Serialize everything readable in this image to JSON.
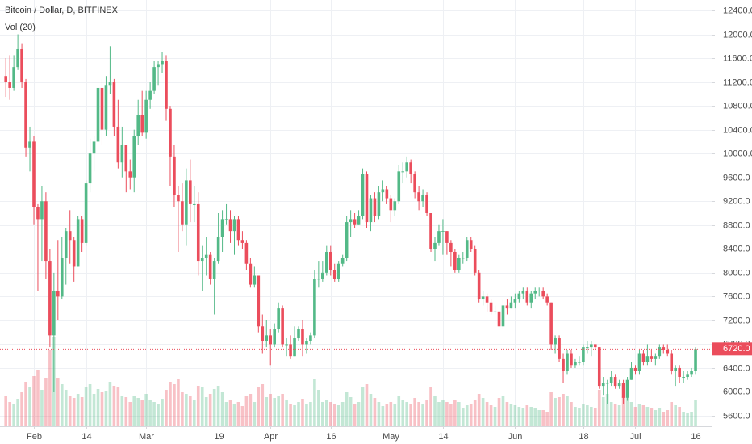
{
  "chart_data": {
    "type": "candlestick",
    "title": "Bitcoin / Dollar, D, BITFINEX",
    "volume_label": "Vol (20)",
    "categories": [
      null,
      null,
      null,
      null,
      null,
      null,
      null,
      "Feb",
      null,
      null,
      null,
      null,
      null,
      null,
      null,
      null,
      null,
      null,
      null,
      null,
      "14",
      null,
      null,
      null,
      null,
      null,
      null,
      null,
      null,
      null,
      null,
      null,
      null,
      null,
      null,
      "Mar",
      null,
      null,
      null,
      null,
      null,
      null,
      null,
      null,
      null,
      null,
      null,
      null,
      null,
      null,
      null,
      null,
      null,
      "19",
      null,
      null,
      null,
      null,
      null,
      null,
      null,
      null,
      null,
      null,
      null,
      null,
      "Apr",
      null,
      null,
      null,
      null,
      null,
      null,
      null,
      null,
      null,
      null,
      null,
      null,
      null,
      null,
      "16",
      null,
      null,
      null,
      null,
      null,
      null,
      null,
      null,
      null,
      null,
      null,
      null,
      null,
      null,
      "May",
      null,
      null,
      null,
      null,
      null,
      null,
      null,
      null,
      null,
      null,
      null,
      null,
      "14",
      null,
      null,
      null,
      null,
      null,
      null,
      null,
      null,
      null,
      null,
      null,
      null,
      null,
      null,
      null,
      null,
      null,
      "Jun",
      null,
      null,
      null,
      null,
      null,
      null,
      null,
      null,
      null,
      null,
      null,
      null,
      null,
      null,
      null,
      null,
      "18",
      null,
      null,
      null,
      null,
      null,
      null,
      null,
      null,
      null,
      null,
      null,
      null,
      "Jul",
      null,
      null,
      null,
      null,
      null,
      null,
      null,
      null,
      null,
      null,
      null,
      null,
      null,
      null,
      "16"
    ],
    "open": [
      11300,
      11200,
      11100,
      11450,
      11750,
      11200,
      10100,
      10200,
      9100,
      8900,
      9200,
      8200,
      6950,
      7700,
      7600,
      8250,
      8700,
      8550,
      8100,
      8900,
      8500,
      9500,
      10000,
      10200,
      11100,
      10400,
      11150,
      11200,
      10450,
      9850,
      10150,
      9700,
      9600,
      10300,
      10650,
      10350,
      10900,
      11050,
      11450,
      11500,
      11550,
      10750,
      9950,
      9300,
      9200,
      8800,
      9550,
      9150,
      9150,
      8200,
      8250,
      8300,
      7900,
      8200,
      8600,
      8900,
      8900,
      8700,
      8900,
      8550,
      8500,
      8150,
      7800,
      7950,
      7100,
      6850,
      6950,
      6800,
      7050,
      7400,
      6800,
      6800,
      6600,
      6900,
      7050,
      6800,
      6850,
      6950,
      7900,
      7900,
      8000,
      8350,
      8050,
      7900,
      8150,
      8250,
      8850,
      8900,
      8800,
      8950,
      9650,
      8850,
      9250,
      8950,
      9350,
      9400,
      9250,
      9050,
      9200,
      9700,
      9700,
      9850,
      9650,
      9350,
      9200,
      9300,
      9000,
      8400,
      8500,
      8700,
      8700,
      8500,
      8350,
      8050,
      8250,
      8250,
      8550,
      8400,
      8000,
      7550,
      7600,
      7500,
      7350,
      7350,
      7100,
      7450,
      7400,
      7500,
      7550,
      7650,
      7700,
      7500,
      7650,
      7700,
      7700,
      7600,
      7500,
      6800,
      6900,
      6550,
      6350,
      6650,
      6450,
      6500,
      6500,
      6750,
      6750,
      6800,
      6750,
      6100,
      6150,
      6150,
      6250,
      6100,
      6150,
      5900,
      6200,
      6400,
      6350,
      6650,
      6500,
      6600,
      6550,
      6600,
      6750,
      6700,
      6650,
      6350,
      6400,
      6250,
      6250,
      6300,
      6350
    ],
    "high": [
      11600,
      11650,
      11650,
      12000,
      11850,
      11250,
      10450,
      10300,
      9150,
      9450,
      9350,
      8400,
      8000,
      8550,
      8600,
      8750,
      9050,
      8600,
      8950,
      8950,
      9550,
      10250,
      10300,
      11100,
      11250,
      11300,
      11800,
      11250,
      10900,
      10450,
      10150,
      9900,
      10400,
      10900,
      11050,
      11050,
      11200,
      11550,
      11550,
      11700,
      11650,
      10800,
      10150,
      9450,
      9500,
      9750,
      9900,
      9450,
      9350,
      8450,
      8600,
      8350,
      8250,
      9000,
      9050,
      9150,
      9050,
      8950,
      8950,
      8700,
      8550,
      8250,
      8100,
      7950,
      7300,
      7200,
      7050,
      7150,
      7500,
      7450,
      6900,
      6950,
      7100,
      7100,
      7200,
      6900,
      7000,
      8050,
      8200,
      8200,
      8450,
      8450,
      8150,
      8200,
      8300,
      8950,
      9050,
      9000,
      9050,
      9750,
      9700,
      9300,
      9350,
      9450,
      9550,
      9450,
      9300,
      9250,
      9800,
      9850,
      9950,
      9900,
      9700,
      9450,
      9400,
      9350,
      9000,
      8600,
      8800,
      8900,
      8700,
      8550,
      8400,
      8300,
      8350,
      8600,
      8600,
      8450,
      8050,
      7700,
      7650,
      7550,
      7450,
      7400,
      7550,
      7550,
      7600,
      7650,
      7700,
      7750,
      7750,
      7700,
      7750,
      7750,
      7750,
      7650,
      7500,
      6950,
      6950,
      6650,
      6700,
      6700,
      6550,
      6600,
      6800,
      6850,
      6850,
      6800,
      6750,
      6250,
      6200,
      6350,
      6300,
      6200,
      6200,
      6250,
      6500,
      6450,
      6700,
      6700,
      6800,
      6700,
      6650,
      6800,
      6800,
      6800,
      6700,
      6450,
      6450,
      6350,
      6350,
      6400,
      6750
    ],
    "low": [
      10950,
      10900,
      11050,
      11400,
      11100,
      9950,
      9700,
      8800,
      7700,
      8200,
      7900,
      6750,
      6000,
      7200,
      7550,
      7800,
      8150,
      7850,
      8100,
      8350,
      8450,
      9350,
      9700,
      10100,
      10150,
      10300,
      11000,
      10300,
      9750,
      9600,
      9350,
      9400,
      9350,
      10150,
      10300,
      10250,
      10750,
      11000,
      11150,
      11350,
      10550,
      9450,
      9100,
      8350,
      8700,
      8450,
      8850,
      8850,
      7950,
      7700,
      7950,
      7800,
      7300,
      8150,
      8350,
      8800,
      8500,
      8300,
      8450,
      8400,
      8050,
      7750,
      7750,
      7000,
      6650,
      6750,
      6450,
      6750,
      7000,
      6750,
      6600,
      6550,
      6600,
      6850,
      6600,
      6650,
      6800,
      6900,
      7750,
      7850,
      7950,
      7950,
      7850,
      7850,
      8100,
      8200,
      8600,
      8750,
      8800,
      8900,
      8750,
      8700,
      8850,
      8900,
      9200,
      9150,
      8850,
      8950,
      9150,
      9500,
      9600,
      9500,
      9250,
      9050,
      9100,
      8950,
      8350,
      8200,
      8450,
      8300,
      8300,
      8100,
      8000,
      8000,
      8150,
      8200,
      8350,
      7950,
      7500,
      7450,
      7350,
      7300,
      7300,
      7050,
      7050,
      7300,
      7400,
      7400,
      7500,
      7550,
      7450,
      7400,
      7550,
      7600,
      7550,
      7450,
      6700,
      6650,
      6500,
      6150,
      6300,
      6400,
      6400,
      6450,
      6450,
      6650,
      6600,
      6700,
      6050,
      5950,
      5800,
      6100,
      6050,
      6050,
      5800,
      5850,
      6200,
      6300,
      6300,
      6450,
      6450,
      6500,
      6450,
      6550,
      6650,
      6600,
      6300,
      6100,
      6150,
      6150,
      6200,
      6250,
      6300
    ],
    "close": [
      11200,
      11100,
      11450,
      11750,
      11200,
      10100,
      10200,
      9100,
      8900,
      9200,
      8200,
      6950,
      7700,
      7600,
      8250,
      8700,
      8550,
      8100,
      8900,
      8500,
      9500,
      10000,
      10200,
      11100,
      10400,
      11150,
      11200,
      10450,
      9850,
      10150,
      9700,
      9600,
      10300,
      10650,
      10350,
      10900,
      11050,
      11450,
      11500,
      11550,
      10750,
      9950,
      9300,
      9200,
      8800,
      9550,
      9150,
      9150,
      8200,
      8250,
      8300,
      7900,
      8200,
      8600,
      8900,
      8900,
      8700,
      8900,
      8550,
      8500,
      8150,
      7800,
      7950,
      7100,
      6850,
      6950,
      6800,
      7050,
      7400,
      6800,
      6800,
      6600,
      6900,
      7050,
      6800,
      6850,
      6950,
      7900,
      7900,
      8000,
      8350,
      8050,
      7900,
      8150,
      8250,
      8850,
      8900,
      8800,
      8950,
      9650,
      8850,
      9250,
      8950,
      9350,
      9400,
      9250,
      9050,
      9200,
      9700,
      9700,
      9850,
      9650,
      9350,
      9200,
      9300,
      9000,
      8400,
      8500,
      8700,
      8700,
      8500,
      8350,
      8050,
      8250,
      8250,
      8550,
      8400,
      8000,
      7550,
      7600,
      7500,
      7350,
      7350,
      7100,
      7450,
      7400,
      7500,
      7550,
      7650,
      7700,
      7500,
      7650,
      7700,
      7700,
      7600,
      7500,
      6800,
      6900,
      6550,
      6350,
      6650,
      6450,
      6500,
      6500,
      6750,
      6750,
      6800,
      6750,
      6100,
      6150,
      6150,
      6250,
      6100,
      6150,
      5900,
      6200,
      6400,
      6350,
      6650,
      6500,
      6600,
      6550,
      6600,
      6750,
      6700,
      6650,
      6350,
      6400,
      6250,
      6250,
      6300,
      6350,
      6720
    ],
    "volume": [
      38000,
      30000,
      28000,
      34000,
      42000,
      55000,
      48000,
      62000,
      70000,
      45000,
      60000,
      95000,
      110000,
      60000,
      52000,
      45000,
      38000,
      35000,
      40000,
      36000,
      48000,
      52000,
      40000,
      46000,
      42000,
      44000,
      55000,
      50000,
      48000,
      38000,
      36000,
      30000,
      38000,
      35000,
      32000,
      40000,
      33000,
      30000,
      28000,
      34000,
      45000,
      55000,
      52000,
      58000,
      42000,
      40000,
      38000,
      32000,
      50000,
      48000,
      36000,
      40000,
      46000,
      50000,
      42000,
      30000,
      32000,
      28000,
      30000,
      25000,
      38000,
      40000,
      30000,
      48000,
      52000,
      36000,
      40000,
      35000,
      38000,
      40000,
      32000,
      28000,
      26000,
      30000,
      34000,
      28000,
      30000,
      58000,
      45000,
      30000,
      32000,
      30000,
      28000,
      26000,
      30000,
      42000,
      36000,
      28000,
      30000,
      48000,
      52000,
      40000,
      35000,
      30000,
      25000,
      28000,
      30000,
      28000,
      38000,
      32000,
      30000,
      28000,
      35000,
      30000,
      28000,
      32000,
      48000,
      38000,
      30000,
      32000,
      30000,
      28000,
      32000,
      30000,
      22000,
      26000,
      28000,
      32000,
      40000,
      35000,
      30000,
      26000,
      24000,
      35000,
      38000,
      30000,
      28000,
      26000,
      24000,
      22000,
      26000,
      24000,
      22000,
      20000,
      20000,
      18000,
      42000,
      35000,
      36000,
      40000,
      38000,
      30000,
      24000,
      22000,
      28000,
      26000,
      24000,
      22000,
      45000,
      36000,
      40000,
      30000,
      28000,
      26000,
      38000,
      35000,
      30000,
      24000,
      28000,
      26000,
      24000,
      22000,
      20000,
      22000,
      18000,
      20000,
      30000,
      26000,
      24000,
      18000,
      16000,
      18000,
      32000
    ],
    "up_color": "#53b987",
    "down_color": "#eb4d5c",
    "ylim": [
      5424,
      12576
    ],
    "yticks": [
      {
        "value": 5600,
        "label": "5600.0"
      },
      {
        "value": 6000,
        "label": "6000.0"
      },
      {
        "value": 6400,
        "label": "6400.0"
      },
      {
        "value": 6800,
        "label": "6800.0"
      },
      {
        "value": 7200,
        "label": "7200.0"
      },
      {
        "value": 7600,
        "label": "7600.0"
      },
      {
        "value": 8000,
        "label": "8000.0"
      },
      {
        "value": 8400,
        "label": "8400.0"
      },
      {
        "value": 8800,
        "label": "8800.0"
      },
      {
        "value": 9200,
        "label": "9200.0"
      },
      {
        "value": 9600,
        "label": "9600.0"
      },
      {
        "value": 10000,
        "label": "10000.0"
      },
      {
        "value": 10400,
        "label": "10400.0"
      },
      {
        "value": 10800,
        "label": "10800.0"
      },
      {
        "value": 11200,
        "label": "11200.0"
      },
      {
        "value": 11600,
        "label": "11600.0"
      },
      {
        "value": 12000,
        "label": "12000.0"
      },
      {
        "value": 12400,
        "label": "12400.0"
      }
    ],
    "last_price": {
      "value": 6720,
      "label": "6720.0"
    },
    "grid": true
  }
}
